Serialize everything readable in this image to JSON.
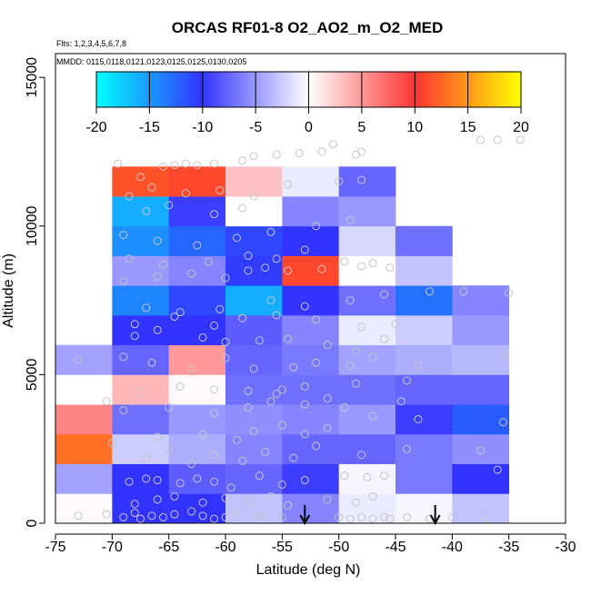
{
  "chart_data": {
    "type": "heatmap",
    "title": "ORCAS RF01-8 O2_AO2_m_O2_MED",
    "subtitle_flights": "Flts: 1,2,3,4,5,6,7,8",
    "subtitle_dates": "MMDD: 0115,0118,0121,0123,0125,0125,0130,0205",
    "xlabel": "Latitude (deg N)",
    "ylabel": "Altitude (m)",
    "xlim": [
      -75,
      -30
    ],
    "ylim": [
      0,
      15800
    ],
    "x_ticks": [
      -75,
      -70,
      -65,
      -60,
      -55,
      -50,
      -45,
      -40,
      -35,
      -30
    ],
    "x_tick_labels": [
      "-75",
      "-70",
      "-65",
      "-60",
      "-55",
      "-50",
      "-45",
      "-40",
      "-35",
      "-30"
    ],
    "y_ticks": [
      0,
      5000,
      10000,
      15000
    ],
    "y_tick_labels": [
      "0",
      "5000",
      "10000",
      "15000"
    ],
    "colorbar": {
      "min": -20,
      "max": 20,
      "ticks": [
        "-20",
        "-15",
        "-10",
        "-5",
        "0",
        "5",
        "10",
        "15",
        "20"
      ],
      "colors": {
        "cyan": "#00ffff",
        "blue": "#3333ff",
        "white": "#ffffff",
        "red": "#ff3333",
        "yellow": "#ffff00"
      }
    },
    "bin_width_deg": 5,
    "bin_height_m": 1000,
    "lat_bins": [
      -75,
      -70,
      -65,
      -60,
      -55,
      -50,
      -45,
      -40
    ],
    "cells": [
      {
        "lat": -75,
        "alt": 0,
        "v": 0.3
      },
      {
        "lat": -75,
        "alt": 1000,
        "v": -4.5
      },
      {
        "lat": -75,
        "alt": 2000,
        "v": 13
      },
      {
        "lat": -75,
        "alt": 3000,
        "v": 6
      },
      {
        "lat": -75,
        "alt": 4000,
        "v": 0
      },
      {
        "lat": -75,
        "alt": 5000,
        "v": -4.5
      },
      {
        "lat": -70,
        "alt": 0,
        "v": -10
      },
      {
        "lat": -70,
        "alt": 1000,
        "v": -10
      },
      {
        "lat": -70,
        "alt": 2000,
        "v": -2.5
      },
      {
        "lat": -70,
        "alt": 3000,
        "v": -7
      },
      {
        "lat": -70,
        "alt": 4000,
        "v": 3.5
      },
      {
        "lat": -70,
        "alt": 5000,
        "v": -7.5
      },
      {
        "lat": -70,
        "alt": 6000,
        "v": -10
      },
      {
        "lat": -70,
        "alt": 7000,
        "v": -14
      },
      {
        "lat": -70,
        "alt": 8000,
        "v": -5
      },
      {
        "lat": -70,
        "alt": 9000,
        "v": -14.5
      },
      {
        "lat": -70,
        "alt": 10000,
        "v": -16
      },
      {
        "lat": -70,
        "alt": 11000,
        "v": 11.5
      },
      {
        "lat": -65,
        "alt": 0,
        "v": -10
      },
      {
        "lat": -65,
        "alt": 1000,
        "v": -8
      },
      {
        "lat": -65,
        "alt": 2000,
        "v": -4
      },
      {
        "lat": -65,
        "alt": 3000,
        "v": -5
      },
      {
        "lat": -65,
        "alt": 4000,
        "v": 0.3
      },
      {
        "lat": -65,
        "alt": 5000,
        "v": 5
      },
      {
        "lat": -65,
        "alt": 6000,
        "v": -10
      },
      {
        "lat": -65,
        "alt": 7000,
        "v": -11
      },
      {
        "lat": -65,
        "alt": 8000,
        "v": -6
      },
      {
        "lat": -65,
        "alt": 9000,
        "v": -12.5
      },
      {
        "lat": -65,
        "alt": 10000,
        "v": -9.5
      },
      {
        "lat": -65,
        "alt": 11000,
        "v": 11
      },
      {
        "lat": -60,
        "alt": 0,
        "v": -3
      },
      {
        "lat": -60,
        "alt": 1000,
        "v": -7.5
      },
      {
        "lat": -60,
        "alt": 2000,
        "v": -6
      },
      {
        "lat": -60,
        "alt": 3000,
        "v": -5.5
      },
      {
        "lat": -60,
        "alt": 4000,
        "v": -7
      },
      {
        "lat": -60,
        "alt": 5000,
        "v": -7.5
      },
      {
        "lat": -60,
        "alt": 6000,
        "v": -8
      },
      {
        "lat": -60,
        "alt": 7000,
        "v": -16
      },
      {
        "lat": -60,
        "alt": 8000,
        "v": -10.5
      },
      {
        "lat": -60,
        "alt": 9000,
        "v": -11
      },
      {
        "lat": -60,
        "alt": 10000,
        "v": 0
      },
      {
        "lat": -60,
        "alt": 11000,
        "v": 3
      },
      {
        "lat": -55,
        "alt": 0,
        "v": -6
      },
      {
        "lat": -55,
        "alt": 1000,
        "v": -9.5
      },
      {
        "lat": -55,
        "alt": 2000,
        "v": -7.5
      },
      {
        "lat": -55,
        "alt": 3000,
        "v": -6
      },
      {
        "lat": -55,
        "alt": 4000,
        "v": -7
      },
      {
        "lat": -55,
        "alt": 5000,
        "v": -6.5
      },
      {
        "lat": -55,
        "alt": 6000,
        "v": -6
      },
      {
        "lat": -55,
        "alt": 7000,
        "v": -10
      },
      {
        "lat": -55,
        "alt": 8000,
        "v": 11
      },
      {
        "lat": -55,
        "alt": 9000,
        "v": -10
      },
      {
        "lat": -55,
        "alt": 10000,
        "v": -6
      },
      {
        "lat": -55,
        "alt": 11000,
        "v": -1
      },
      {
        "lat": -50,
        "alt": 0,
        "v": -1
      },
      {
        "lat": -50,
        "alt": 1000,
        "v": -0.5
      },
      {
        "lat": -50,
        "alt": 2000,
        "v": -7.5
      },
      {
        "lat": -50,
        "alt": 3000,
        "v": -5
      },
      {
        "lat": -50,
        "alt": 4000,
        "v": -7
      },
      {
        "lat": -50,
        "alt": 5000,
        "v": -4.5
      },
      {
        "lat": -50,
        "alt": 6000,
        "v": -1
      },
      {
        "lat": -50,
        "alt": 7000,
        "v": -7
      },
      {
        "lat": -50,
        "alt": 8000,
        "v": 0
      },
      {
        "lat": -50,
        "alt": 9000,
        "v": -2
      },
      {
        "lat": -50,
        "alt": 10000,
        "v": -5
      },
      {
        "lat": -50,
        "alt": 11000,
        "v": -7.5
      },
      {
        "lat": -45,
        "alt": 0,
        "v": -0.5
      },
      {
        "lat": -45,
        "alt": 1000,
        "v": -6.5
      },
      {
        "lat": -45,
        "alt": 2000,
        "v": -6.5
      },
      {
        "lat": -45,
        "alt": 3000,
        "v": -9.5
      },
      {
        "lat": -45,
        "alt": 4000,
        "v": -7.5
      },
      {
        "lat": -45,
        "alt": 5000,
        "v": -4
      },
      {
        "lat": -45,
        "alt": 6000,
        "v": -2.5
      },
      {
        "lat": -45,
        "alt": 7000,
        "v": -13
      },
      {
        "lat": -45,
        "alt": 8000,
        "v": -3
      },
      {
        "lat": -45,
        "alt": 9000,
        "v": -7
      },
      {
        "lat": -40,
        "alt": 0,
        "v": -3
      },
      {
        "lat": -40,
        "alt": 1000,
        "v": -10
      },
      {
        "lat": -40,
        "alt": 2000,
        "v": -5.5
      },
      {
        "lat": -40,
        "alt": 3000,
        "v": -12
      },
      {
        "lat": -40,
        "alt": 4000,
        "v": -7.5
      },
      {
        "lat": -40,
        "alt": 5000,
        "v": -3.5
      },
      {
        "lat": -40,
        "alt": 6000,
        "v": -5
      },
      {
        "lat": -40,
        "alt": 7000,
        "v": -6
      }
    ],
    "observations": [
      [
        -73,
        250
      ],
      [
        -70.5,
        300
      ],
      [
        -69,
        200
      ],
      [
        -68,
        350
      ],
      [
        -67.5,
        150
      ],
      [
        -66.5,
        250
      ],
      [
        -65.5,
        200
      ],
      [
        -64.5,
        300
      ],
      [
        -63,
        400
      ],
      [
        -62,
        250
      ],
      [
        -61,
        150
      ],
      [
        -60,
        200
      ],
      [
        -59,
        350
      ],
      [
        -57,
        250
      ],
      [
        -55,
        200
      ],
      [
        -50,
        200
      ],
      [
        -49,
        150
      ],
      [
        -48,
        200
      ],
      [
        -47,
        150
      ],
      [
        -46,
        200
      ],
      [
        -45.5,
        150
      ],
      [
        -44,
        200
      ],
      [
        -42,
        150
      ],
      [
        -40,
        200
      ],
      [
        -37,
        150
      ],
      [
        -68,
        650
      ],
      [
        -66,
        800
      ],
      [
        -64.5,
        900
      ],
      [
        -62,
        700
      ],
      [
        -60,
        850
      ],
      [
        -58,
        700
      ],
      [
        -56,
        900
      ],
      [
        -54.5,
        600
      ],
      [
        -51,
        800
      ],
      [
        -48.5,
        700
      ],
      [
        -47,
        900
      ],
      [
        -68.5,
        1400
      ],
      [
        -67,
        1500
      ],
      [
        -66,
        1450
      ],
      [
        -64,
        1350
      ],
      [
        -62.5,
        1500
      ],
      [
        -61,
        1400
      ],
      [
        -59.5,
        1200
      ],
      [
        -57,
        1600
      ],
      [
        -55,
        1300
      ],
      [
        -53,
        1450
      ],
      [
        -49.5,
        1600
      ],
      [
        -47.5,
        1550
      ],
      [
        -46,
        1600
      ],
      [
        -36,
        1800
      ],
      [
        -67,
        2200
      ],
      [
        -65,
        2500
      ],
      [
        -63,
        2000
      ],
      [
        -61,
        2300
      ],
      [
        -58.5,
        2100
      ],
      [
        -56.5,
        2400
      ],
      [
        -54,
        2200
      ],
      [
        -52,
        2600
      ],
      [
        -48,
        2300
      ],
      [
        -44,
        2500
      ],
      [
        -37.5,
        2450
      ],
      [
        -70,
        2700
      ],
      [
        -66,
        2900
      ],
      [
        -62,
        3000
      ],
      [
        -59,
        2800
      ],
      [
        -57.5,
        3100
      ],
      [
        -55,
        3300
      ],
      [
        -53,
        3000
      ],
      [
        -51,
        3200
      ],
      [
        -47,
        3600
      ],
      [
        -43,
        3500
      ],
      [
        -35.5,
        3400
      ],
      [
        -69,
        3800
      ],
      [
        -65,
        3900
      ],
      [
        -61,
        3700
      ],
      [
        -58,
        3900
      ],
      [
        -56,
        4100
      ],
      [
        -55.5,
        4350
      ],
      [
        -53,
        4000
      ],
      [
        -51,
        4200
      ],
      [
        -49.5,
        3900
      ],
      [
        -44.5,
        4100
      ],
      [
        -70.5,
        4100
      ],
      [
        -67.5,
        4400
      ],
      [
        -64,
        4600
      ],
      [
        -61,
        4500
      ],
      [
        -58,
        4450
      ],
      [
        -55,
        4500
      ],
      [
        -53,
        4600
      ],
      [
        -48.5,
        4700
      ],
      [
        -44,
        4800
      ],
      [
        -73,
        5500
      ],
      [
        -69,
        5600
      ],
      [
        -66.5,
        5400
      ],
      [
        -63,
        5200
      ],
      [
        -60,
        5550
      ],
      [
        -57.5,
        5200
      ],
      [
        -54,
        5250
      ],
      [
        -52,
        5400
      ],
      [
        -49,
        5300
      ],
      [
        -47,
        5600
      ],
      [
        -43,
        5300
      ],
      [
        -35.5,
        5650
      ],
      [
        -68,
        6300
      ],
      [
        -66,
        6500
      ],
      [
        -62,
        6250
      ],
      [
        -60,
        6100
      ],
      [
        -57,
        6150
      ],
      [
        -54.5,
        6200
      ],
      [
        -51,
        6000
      ],
      [
        -48.5,
        5800
      ],
      [
        -46,
        6200
      ],
      [
        -68,
        6700
      ],
      [
        -64.5,
        6950
      ],
      [
        -61,
        6650
      ],
      [
        -58.5,
        6900
      ],
      [
        -55.5,
        7000
      ],
      [
        -52,
        6850
      ],
      [
        -48,
        6600
      ],
      [
        -45,
        6700
      ],
      [
        -67,
        7250
      ],
      [
        -64,
        7100
      ],
      [
        -60.5,
        7200
      ],
      [
        -56,
        7500
      ],
      [
        -53,
        7300
      ],
      [
        -49,
        7500
      ],
      [
        -46,
        7700
      ],
      [
        -42,
        7800
      ],
      [
        -39,
        7800
      ],
      [
        -35,
        7750
      ],
      [
        -69,
        8150
      ],
      [
        -66,
        8300
      ],
      [
        -63,
        8400
      ],
      [
        -60,
        8250
      ],
      [
        -58,
        8500
      ],
      [
        -56.5,
        8600
      ],
      [
        -54.5,
        8500
      ],
      [
        -51.5,
        8550
      ],
      [
        -48,
        8650
      ],
      [
        -45.5,
        8600
      ],
      [
        -68.5,
        8900
      ],
      [
        -65.5,
        8700
      ],
      [
        -61.5,
        8800
      ],
      [
        -58,
        9000
      ],
      [
        -55.5,
        8900
      ],
      [
        -53,
        9200
      ],
      [
        -49.5,
        8800
      ],
      [
        -47,
        8750
      ],
      [
        -69,
        9700
      ],
      [
        -66,
        9500
      ],
      [
        -62.5,
        9350
      ],
      [
        -59,
        9600
      ],
      [
        -56,
        9800
      ],
      [
        -52,
        10000
      ],
      [
        -49,
        10200
      ],
      [
        -67,
        10500
      ],
      [
        -65,
        10700
      ],
      [
        -61,
        10400
      ],
      [
        -58.5,
        10600
      ],
      [
        -68.5,
        11000
      ],
      [
        -66.5,
        11300
      ],
      [
        -63.5,
        11100
      ],
      [
        -60.5,
        11200
      ],
      [
        -57.5,
        11000
      ],
      [
        -54.5,
        11400
      ],
      [
        -50,
        11500
      ],
      [
        -48,
        11550
      ],
      [
        -69.5,
        12100
      ],
      [
        -67.5,
        11650
      ],
      [
        -65.5,
        12000
      ],
      [
        -64.5,
        12050
      ],
      [
        -63.5,
        12100
      ],
      [
        -62.5,
        12050
      ],
      [
        -61,
        12100
      ],
      [
        -58.5,
        12200
      ],
      [
        -57.5,
        12350
      ],
      [
        -55.5,
        12400
      ],
      [
        -53.5,
        12450
      ],
      [
        -51.5,
        12500
      ],
      [
        -50.5,
        12750
      ],
      [
        -48.5,
        12400
      ],
      [
        -48,
        12500
      ],
      [
        -37.5,
        12900
      ],
      [
        -36,
        12900
      ],
      [
        -34,
        12900
      ]
    ],
    "arrows_lat": [
      -53,
      -41.5
    ]
  }
}
